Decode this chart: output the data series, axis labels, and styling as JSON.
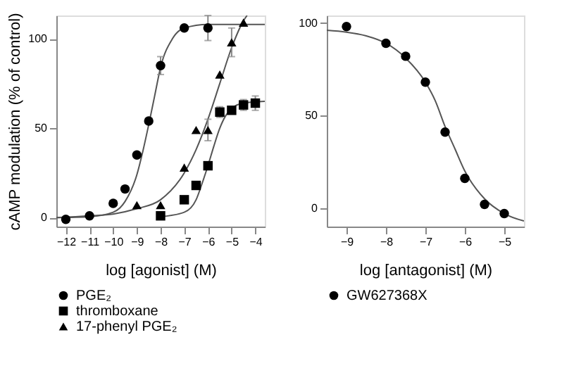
{
  "chart_data": [
    {
      "type": "scatter",
      "xlabel": "log [agonist] (M)",
      "ylabel": "cAMP modulation (% of control)",
      "xlim": [
        -12.4,
        -3.6
      ],
      "ylim": [
        -5,
        113
      ],
      "xticks": [
        -12,
        -11,
        -10,
        -9,
        -8,
        -7,
        -6,
        -5,
        -4
      ],
      "yticks": [
        0,
        50,
        100
      ],
      "grid": false,
      "legend": "bottom",
      "series": [
        {
          "type": "line",
          "color": "#555555",
          "marker": "none",
          "x": [
            -12.4,
            -11,
            -10,
            -9.5,
            -9,
            -8.75,
            -8.5,
            -8.25,
            -8,
            -7.5,
            -7,
            -6,
            -3.6
          ],
          "values": [
            0,
            0.5,
            3,
            9,
            24,
            37,
            52,
            68,
            84,
            100,
            106,
            108,
            108
          ]
        },
        {
          "type": "line",
          "color": "#555555",
          "marker": "none",
          "x": [
            -8,
            -7,
            -6.5,
            -6.25,
            -6,
            -5.75,
            -5.5,
            -5.25,
            -5,
            -4.5,
            -3.6
          ],
          "values": [
            0.5,
            3,
            10,
            19,
            29,
            40,
            50,
            57,
            61,
            64,
            65
          ]
        },
        {
          "type": "line",
          "color": "#555555",
          "marker": "none",
          "x": [
            -12.4,
            -11,
            -10,
            -9,
            -8,
            -7,
            -6.5,
            -6,
            -5.5,
            -5,
            -4.5,
            -4.35
          ],
          "values": [
            0,
            1,
            2,
            5,
            10,
            25,
            38,
            55,
            75,
            95,
            110,
            113
          ]
        },
        {
          "name": "PGE₂",
          "color": "#000000",
          "marker": "circle",
          "x": [
            -12,
            -11,
            -10,
            -9.5,
            -9,
            -8.5,
            -8,
            -7,
            -6
          ],
          "values": [
            -1,
            1,
            8,
            16,
            35,
            54,
            85,
            106,
            106
          ],
          "errors": [
            null,
            null,
            null,
            null,
            null,
            null,
            5,
            null,
            7
          ]
        },
        {
          "name": "thromboxane",
          "color": "#000000",
          "marker": "square",
          "x": [
            -8,
            -7,
            -6.5,
            -6,
            -5.5,
            -5,
            -4.5,
            -4
          ],
          "values": [
            1,
            10,
            18,
            29,
            59,
            60,
            63,
            64
          ],
          "errors": [
            null,
            null,
            null,
            null,
            3,
            null,
            3,
            4
          ]
        },
        {
          "name": "17-phenyl PGE₂",
          "color": "#000000",
          "marker": "triangle",
          "x": [
            -9,
            -8,
            -7,
            -6.5,
            -6,
            -5.5,
            -5,
            -4.5
          ],
          "values": [
            7,
            7,
            28,
            49,
            49,
            80,
            98,
            109
          ],
          "errors": [
            null,
            null,
            null,
            null,
            6,
            null,
            8,
            null
          ]
        }
      ]
    },
    {
      "type": "scatter",
      "xlabel": "log [antagonist] (M)",
      "xlim": [
        -9.5,
        -4.5
      ],
      "ylim": [
        -10,
        104
      ],
      "xticks": [
        -9,
        -8,
        -7,
        -6,
        -5
      ],
      "yticks": [
        0,
        50,
        100
      ],
      "grid": false,
      "legend": "bottom",
      "series": [
        {
          "type": "line",
          "color": "#555555",
          "marker": "none",
          "x": [
            -9.5,
            -9,
            -8.5,
            -8,
            -7.5,
            -7,
            -6.75,
            -6.5,
            -6.25,
            -6,
            -5.5,
            -5,
            -4.5
          ],
          "values": [
            96,
            95,
            93,
            89,
            81,
            68,
            58,
            44,
            32,
            20,
            5,
            -3,
            -7
          ]
        },
        {
          "name": "GW627368X",
          "color": "#000000",
          "marker": "circle",
          "x": [
            -9,
            -8,
            -7.5,
            -7,
            -6.5,
            -6,
            -5.5,
            -5
          ],
          "values": [
            98,
            89,
            82,
            68,
            41,
            16,
            2,
            -3
          ]
        }
      ]
    }
  ]
}
